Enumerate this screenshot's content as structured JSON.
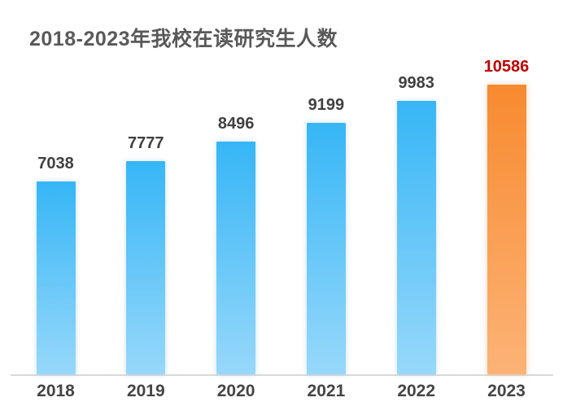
{
  "chart_data": {
    "type": "bar",
    "title": "2018-2023年我校在读研究生人数",
    "categories": [
      "2018",
      "2019",
      "2020",
      "2021",
      "2022",
      "2023"
    ],
    "values": [
      7038,
      7777,
      8496,
      9199,
      9983,
      10586
    ],
    "data_labels": [
      "7038",
      "7777",
      "8496",
      "9199",
      "9983",
      "10586"
    ],
    "highlight_index": 5,
    "xlabel": "",
    "ylabel": "",
    "ylim": [
      0,
      10586
    ],
    "grid": false,
    "legend": false,
    "y_axis_visible": false,
    "colors": {
      "bar_gradient_top": "#36b6f6",
      "bar_gradient_bottom": "#97d8fa",
      "highlight_gradient_top": "#f78a2f",
      "highlight_gradient_bottom": "#fcb377",
      "value_label": "#404040",
      "highlight_value_label": "#c00000",
      "axis_label": "#454545",
      "title": "#595959",
      "axis_line": "#d9d9d9",
      "background": "#ffffff"
    }
  }
}
